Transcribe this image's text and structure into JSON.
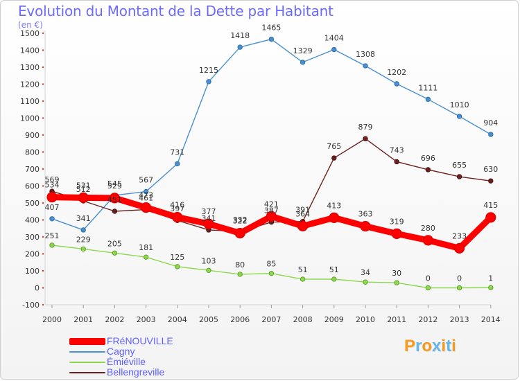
{
  "chart_data": {
    "type": "line",
    "title": "Evolution du Montant de la Dette par Habitant",
    "subtitle": "(en €)",
    "xlabel": "",
    "ylabel": "",
    "x": [
      "2000",
      "2001",
      "2002",
      "2003",
      "2004",
      "2005",
      "2006",
      "2007",
      "2008",
      "2009",
      "2010",
      "2011",
      "2012",
      "2013",
      "2014"
    ],
    "ylim": [
      -100,
      1500
    ],
    "yticks": [
      "-100",
      "0",
      "100",
      "200",
      "300",
      "400",
      "500",
      "600",
      "700",
      "800",
      "900",
      "1000",
      "1100",
      "1200",
      "1300",
      "1400",
      "1500"
    ],
    "grid": false,
    "legend_position": "bottom-left",
    "series": [
      {
        "name": "FRéNOUVILLE",
        "color": "#ff0000",
        "values": [
          534,
          531,
          529,
          473,
          416,
          377,
          322,
          421,
          364,
          413,
          363,
          319,
          280,
          233,
          415
        ],
        "labels": [
          "534",
          "531",
          "529",
          "473",
          "416",
          "377",
          "322",
          "421",
          "364",
          "413",
          "363",
          "319",
          "280",
          "233",
          "415"
        ]
      },
      {
        "name": "Cagny",
        "color": "#4a8fd0",
        "values": [
          407,
          341,
          545,
          567,
          731,
          1215,
          1418,
          1465,
          1329,
          1404,
          1308,
          1202,
          1111,
          1010,
          904
        ],
        "labels": [
          "407",
          "341",
          "545",
          "567",
          "731",
          "1215",
          "1418",
          "1465",
          "1329",
          "1404",
          "1308",
          "1202",
          "1111",
          "1010",
          "904"
        ]
      },
      {
        "name": "Émiéville",
        "color": "#8ed84d",
        "values": [
          251,
          229,
          205,
          181,
          125,
          103,
          80,
          85,
          51,
          51,
          34,
          30,
          0,
          0,
          1
        ],
        "labels": [
          "251",
          "229",
          "205",
          "181",
          "125",
          "103",
          "80",
          "85",
          "51",
          "51",
          "34",
          "30",
          "0",
          "0",
          "1"
        ]
      },
      {
        "name": "Bellengreville",
        "color": "#6d1f1f",
        "values": [
          569,
          512,
          451,
          461,
          397,
          341,
          332,
          387,
          391,
          765,
          879,
          743,
          696,
          655,
          630
        ],
        "labels": [
          "569",
          "512",
          "451",
          "461",
          "397",
          "341",
          "332",
          "387",
          "391",
          "765",
          "879",
          "743",
          "696",
          "655",
          "630"
        ]
      }
    ]
  },
  "brand": {
    "text": "Proxiti",
    "colors": [
      "#f59a1f",
      "#67b6e8",
      "#f59a1f",
      "#67b6e8",
      "#f59a1f",
      "#67b6e8",
      "#f59a1f"
    ]
  }
}
